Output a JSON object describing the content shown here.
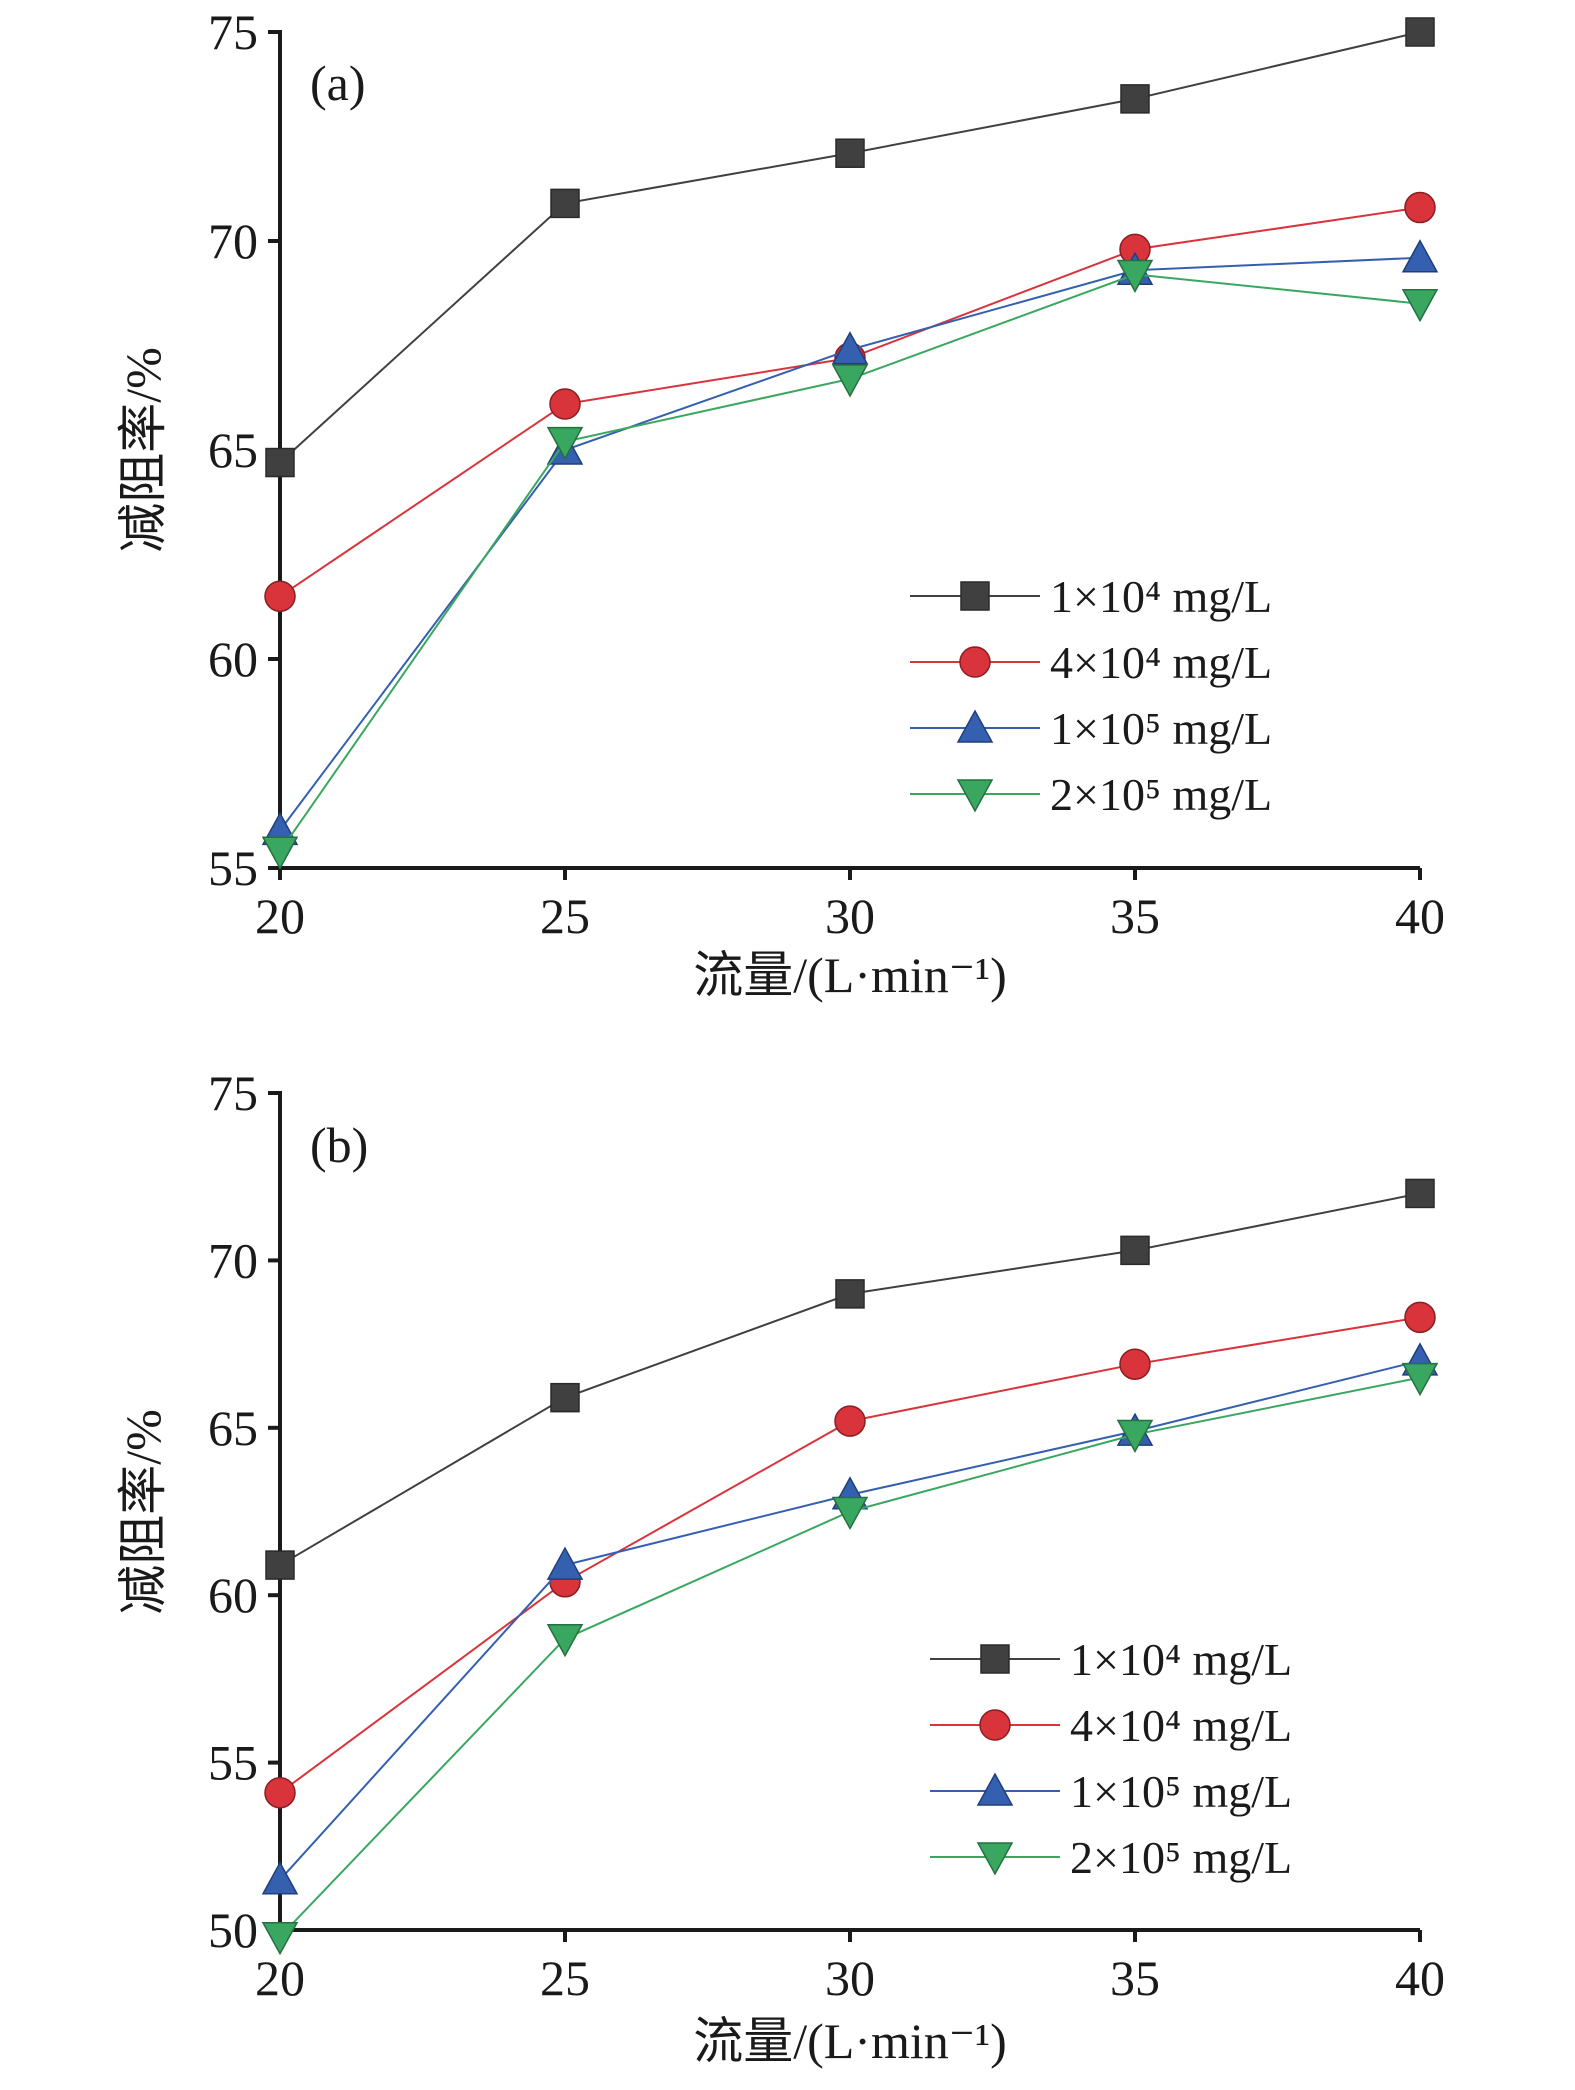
{
  "chart_data": [
    {
      "type": "line",
      "panel_label": "(a)",
      "xlabel": "流量/(L·min⁻¹)",
      "ylabel": "减阻率/%",
      "x": [
        20,
        25,
        30,
        35,
        40
      ],
      "x_ticks": [
        "20",
        "25",
        "30",
        "35",
        "40"
      ],
      "ylim": [
        55,
        75
      ],
      "y_ticks": [
        "55",
        "60",
        "65",
        "70",
        "75"
      ],
      "legend_position": "lower-right",
      "series": [
        {
          "name": "1×10⁴ mg/L",
          "values": [
            64.7,
            70.9,
            72.1,
            73.4,
            75.0
          ],
          "color": "#404040",
          "marker": "square"
        },
        {
          "name": "4×10⁴ mg/L",
          "values": [
            61.5,
            66.1,
            67.2,
            69.8,
            70.8
          ],
          "color": "#d9343b",
          "marker": "circle"
        },
        {
          "name": "1×10⁵ mg/L",
          "values": [
            55.9,
            65.0,
            67.4,
            69.3,
            69.6
          ],
          "color": "#3560b0",
          "marker": "triangle-up"
        },
        {
          "name": "2×10⁵ mg/L",
          "values": [
            55.4,
            65.2,
            66.7,
            69.2,
            68.5
          ],
          "color": "#3aa760",
          "marker": "triangle-down"
        }
      ]
    },
    {
      "type": "line",
      "panel_label": "(b)",
      "xlabel": "流量/(L·min⁻¹)",
      "ylabel": "减阻率/%",
      "x": [
        20,
        25,
        30,
        35,
        40
      ],
      "x_ticks": [
        "20",
        "25",
        "30",
        "35",
        "40"
      ],
      "ylim": [
        50,
        75
      ],
      "y_ticks": [
        "50",
        "55",
        "60",
        "65",
        "70",
        "75"
      ],
      "legend_position": "lower-right",
      "series": [
        {
          "name": "1×10⁴ mg/L",
          "values": [
            60.9,
            65.9,
            69.0,
            70.3,
            72.0
          ],
          "color": "#404040",
          "marker": "square"
        },
        {
          "name": "4×10⁴ mg/L",
          "values": [
            54.1,
            60.4,
            65.2,
            66.9,
            68.3
          ],
          "color": "#d9343b",
          "marker": "circle"
        },
        {
          "name": "1×10⁵ mg/L",
          "values": [
            51.5,
            60.9,
            63.0,
            64.9,
            67.0
          ],
          "color": "#3560b0",
          "marker": "triangle-up"
        },
        {
          "name": "2×10⁵ mg/L",
          "values": [
            49.8,
            58.7,
            62.5,
            64.8,
            66.5
          ],
          "color": "#3aa760",
          "marker": "triangle-down"
        }
      ]
    }
  ]
}
